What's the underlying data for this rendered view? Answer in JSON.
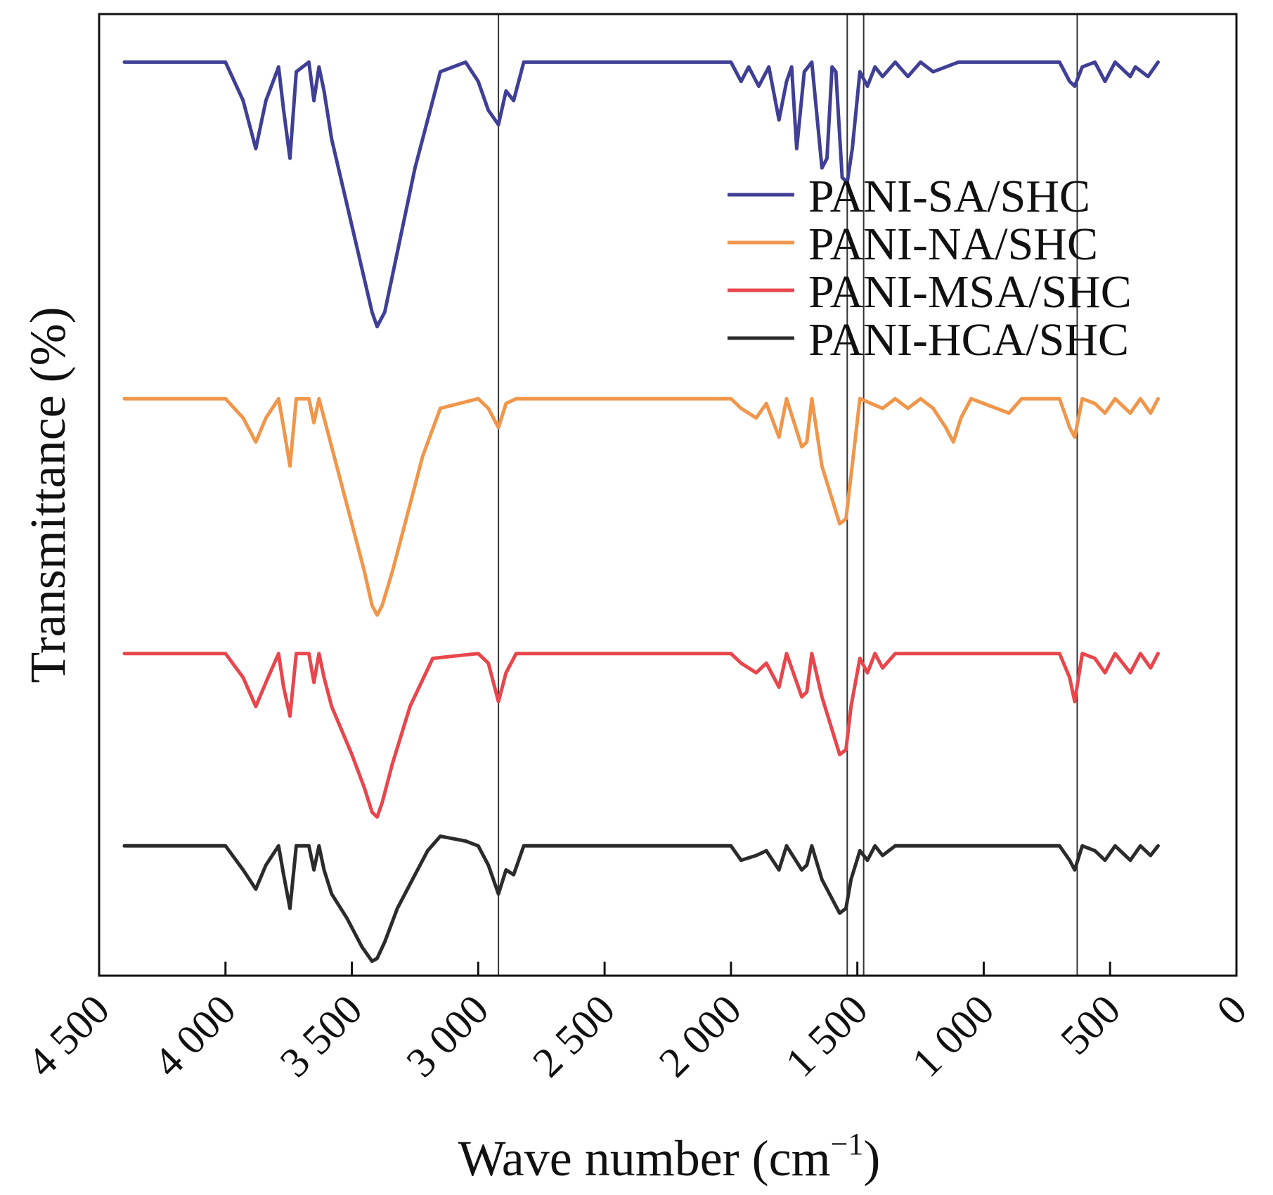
{
  "chart_data": {
    "type": "line",
    "title": "",
    "xlabel": "Wave number (cm",
    "xlabel_unit_superscript": "−1",
    "xlabel_close": ")",
    "ylabel": "Transmittance (%)",
    "xlim": [
      4500,
      0
    ],
    "x_reversed": true,
    "ylim": [
      0,
      100
    ],
    "y_ticks_shown": false,
    "grid": false,
    "legend_position": "top-right",
    "x_ticks": [
      4500,
      4000,
      3500,
      3000,
      2500,
      2000,
      1500,
      1000,
      500,
      0
    ],
    "x_tick_labels": [
      "4 500",
      "4 000",
      "3 500",
      "3 000",
      "2 500",
      "2 000",
      "1 500",
      "1 000",
      "500",
      "0"
    ],
    "reference_lines_x": [
      2920,
      1540,
      1475,
      630
    ],
    "series": [
      {
        "name": "PANI-SA/SHC",
        "color": "#3f3f96",
        "baseline": 95,
        "points": [
          [
            4400,
            95
          ],
          [
            4000,
            95
          ],
          [
            3930,
            91
          ],
          [
            3880,
            86
          ],
          [
            3840,
            91
          ],
          [
            3790,
            94.5
          ],
          [
            3770,
            90
          ],
          [
            3745,
            85
          ],
          [
            3720,
            94
          ],
          [
            3670,
            95
          ],
          [
            3650,
            91
          ],
          [
            3630,
            94.5
          ],
          [
            3610,
            92
          ],
          [
            3580,
            87
          ],
          [
            3500,
            78
          ],
          [
            3420,
            69
          ],
          [
            3400,
            67.5
          ],
          [
            3370,
            69
          ],
          [
            3330,
            74
          ],
          [
            3250,
            84
          ],
          [
            3150,
            94
          ],
          [
            3050,
            95
          ],
          [
            3000,
            93
          ],
          [
            2960,
            90
          ],
          [
            2920,
            88.5
          ],
          [
            2890,
            92
          ],
          [
            2860,
            91
          ],
          [
            2820,
            95
          ],
          [
            2000,
            95
          ],
          [
            1960,
            93
          ],
          [
            1930,
            94.5
          ],
          [
            1890,
            92.5
          ],
          [
            1850,
            94.5
          ],
          [
            1810,
            89
          ],
          [
            1780,
            93
          ],
          [
            1760,
            94.5
          ],
          [
            1740,
            86
          ],
          [
            1710,
            94
          ],
          [
            1680,
            95
          ],
          [
            1640,
            84
          ],
          [
            1620,
            85
          ],
          [
            1600,
            94.5
          ],
          [
            1585,
            94
          ],
          [
            1560,
            83
          ],
          [
            1540,
            82.5
          ],
          [
            1520,
            86
          ],
          [
            1490,
            94
          ],
          [
            1460,
            92.5
          ],
          [
            1430,
            94.5
          ],
          [
            1400,
            93.5
          ],
          [
            1350,
            95
          ],
          [
            1300,
            93.5
          ],
          [
            1250,
            95
          ],
          [
            1200,
            94
          ],
          [
            1100,
            95
          ],
          [
            700,
            95
          ],
          [
            680,
            94
          ],
          [
            660,
            93
          ],
          [
            640,
            92.5
          ],
          [
            610,
            94.5
          ],
          [
            560,
            95
          ],
          [
            520,
            93
          ],
          [
            480,
            95
          ],
          [
            420,
            93.5
          ],
          [
            400,
            94.5
          ],
          [
            350,
            93.5
          ],
          [
            310,
            95
          ]
        ]
      },
      {
        "name": "PANI-NA/SHC",
        "color": "#f0964b",
        "baseline": 60,
        "points": [
          [
            4400,
            60
          ],
          [
            4000,
            60
          ],
          [
            3930,
            58
          ],
          [
            3880,
            55.5
          ],
          [
            3840,
            58
          ],
          [
            3790,
            60
          ],
          [
            3770,
            57
          ],
          [
            3745,
            53
          ],
          [
            3720,
            60
          ],
          [
            3670,
            60
          ],
          [
            3650,
            57.5
          ],
          [
            3630,
            60
          ],
          [
            3610,
            58
          ],
          [
            3580,
            55
          ],
          [
            3500,
            47
          ],
          [
            3450,
            42
          ],
          [
            3420,
            38.5
          ],
          [
            3400,
            37.5
          ],
          [
            3380,
            38.5
          ],
          [
            3340,
            42
          ],
          [
            3280,
            48
          ],
          [
            3220,
            54
          ],
          [
            3150,
            59
          ],
          [
            3000,
            60
          ],
          [
            2960,
            59
          ],
          [
            2920,
            57
          ],
          [
            2890,
            59.5
          ],
          [
            2850,
            60
          ],
          [
            2000,
            60
          ],
          [
            1960,
            59
          ],
          [
            1900,
            58
          ],
          [
            1860,
            59.5
          ],
          [
            1810,
            56
          ],
          [
            1780,
            60
          ],
          [
            1720,
            55
          ],
          [
            1700,
            55.5
          ],
          [
            1680,
            60
          ],
          [
            1640,
            53
          ],
          [
            1570,
            47
          ],
          [
            1545,
            47.5
          ],
          [
            1525,
            52
          ],
          [
            1490,
            60
          ],
          [
            1400,
            59
          ],
          [
            1350,
            60
          ],
          [
            1300,
            59
          ],
          [
            1250,
            60
          ],
          [
            1200,
            59
          ],
          [
            1150,
            57
          ],
          [
            1120,
            55.5
          ],
          [
            1090,
            58
          ],
          [
            1050,
            60
          ],
          [
            1000,
            59.5
          ],
          [
            900,
            58.5
          ],
          [
            850,
            60
          ],
          [
            700,
            60
          ],
          [
            660,
            57
          ],
          [
            640,
            56
          ],
          [
            610,
            60
          ],
          [
            560,
            59.5
          ],
          [
            520,
            58.5
          ],
          [
            480,
            60
          ],
          [
            420,
            58.5
          ],
          [
            380,
            60
          ],
          [
            340,
            58.5
          ],
          [
            310,
            60
          ]
        ]
      },
      {
        "name": "PANI-MSA/SHC",
        "color": "#e8464c",
        "baseline": 33.5,
        "points": [
          [
            4400,
            33.5
          ],
          [
            4000,
            33.5
          ],
          [
            3930,
            31
          ],
          [
            3880,
            28
          ],
          [
            3840,
            30.5
          ],
          [
            3790,
            33.5
          ],
          [
            3770,
            30
          ],
          [
            3745,
            27
          ],
          [
            3720,
            33.5
          ],
          [
            3670,
            33.5
          ],
          [
            3650,
            30.5
          ],
          [
            3630,
            33.5
          ],
          [
            3610,
            31
          ],
          [
            3580,
            28
          ],
          [
            3500,
            23
          ],
          [
            3450,
            19.5
          ],
          [
            3420,
            17
          ],
          [
            3400,
            16.5
          ],
          [
            3380,
            18
          ],
          [
            3340,
            22
          ],
          [
            3270,
            28
          ],
          [
            3180,
            33
          ],
          [
            3000,
            33.5
          ],
          [
            2960,
            32.5
          ],
          [
            2920,
            28.5
          ],
          [
            2890,
            31.5
          ],
          [
            2850,
            33.5
          ],
          [
            2000,
            33.5
          ],
          [
            1960,
            32.5
          ],
          [
            1900,
            31.5
          ],
          [
            1860,
            32.5
          ],
          [
            1810,
            30
          ],
          [
            1780,
            33.5
          ],
          [
            1720,
            29
          ],
          [
            1700,
            29.5
          ],
          [
            1680,
            33.5
          ],
          [
            1640,
            29
          ],
          [
            1570,
            23
          ],
          [
            1545,
            23.5
          ],
          [
            1525,
            28
          ],
          [
            1490,
            33
          ],
          [
            1460,
            31.5
          ],
          [
            1430,
            33.5
          ],
          [
            1400,
            32
          ],
          [
            1350,
            33.5
          ],
          [
            700,
            33.5
          ],
          [
            660,
            31
          ],
          [
            640,
            28.5
          ],
          [
            610,
            33.5
          ],
          [
            560,
            33
          ],
          [
            520,
            31.5
          ],
          [
            480,
            33.5
          ],
          [
            420,
            31.5
          ],
          [
            380,
            33.5
          ],
          [
            340,
            32
          ],
          [
            310,
            33.5
          ]
        ]
      },
      {
        "name": "PANI-HCA/SHC",
        "color": "#2b2b2b",
        "baseline": 13.5,
        "points": [
          [
            4400,
            13.5
          ],
          [
            4000,
            13.5
          ],
          [
            3930,
            11
          ],
          [
            3880,
            9
          ],
          [
            3840,
            11.5
          ],
          [
            3790,
            13.5
          ],
          [
            3770,
            10.5
          ],
          [
            3745,
            7
          ],
          [
            3720,
            13.5
          ],
          [
            3670,
            13.5
          ],
          [
            3650,
            11
          ],
          [
            3630,
            13.5
          ],
          [
            3610,
            11
          ],
          [
            3580,
            8.5
          ],
          [
            3520,
            6
          ],
          [
            3460,
            3
          ],
          [
            3420,
            1.5
          ],
          [
            3400,
            1.8
          ],
          [
            3370,
            3.5
          ],
          [
            3320,
            7
          ],
          [
            3260,
            10
          ],
          [
            3200,
            13
          ],
          [
            3150,
            14.5
          ],
          [
            3050,
            14
          ],
          [
            3000,
            13.5
          ],
          [
            2960,
            11.5
          ],
          [
            2920,
            8.5
          ],
          [
            2890,
            11
          ],
          [
            2860,
            10.5
          ],
          [
            2820,
            13.5
          ],
          [
            2000,
            13.5
          ],
          [
            1960,
            12
          ],
          [
            1900,
            12.5
          ],
          [
            1860,
            13
          ],
          [
            1810,
            11
          ],
          [
            1780,
            13.5
          ],
          [
            1720,
            11
          ],
          [
            1700,
            11.5
          ],
          [
            1680,
            13.5
          ],
          [
            1640,
            10
          ],
          [
            1570,
            6.5
          ],
          [
            1545,
            7
          ],
          [
            1525,
            10
          ],
          [
            1490,
            13
          ],
          [
            1460,
            12
          ],
          [
            1430,
            13.5
          ],
          [
            1400,
            12.5
          ],
          [
            1350,
            13.5
          ],
          [
            700,
            13.5
          ],
          [
            660,
            12
          ],
          [
            640,
            11
          ],
          [
            610,
            13.5
          ],
          [
            560,
            13
          ],
          [
            520,
            12
          ],
          [
            480,
            13.5
          ],
          [
            420,
            12
          ],
          [
            380,
            13.5
          ],
          [
            340,
            12.5
          ],
          [
            310,
            13.5
          ]
        ]
      }
    ]
  }
}
